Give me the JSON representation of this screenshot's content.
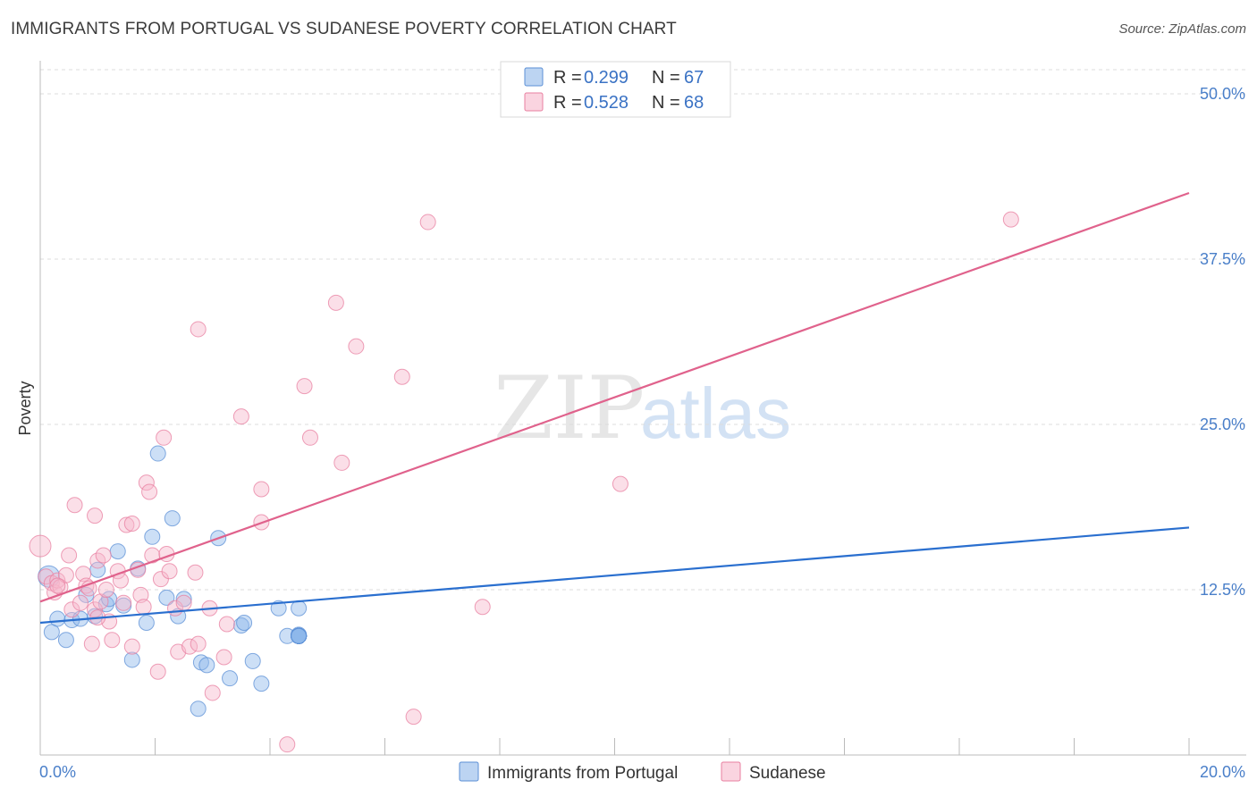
{
  "title": "IMMIGRANTS FROM PORTUGAL VS SUDANESE POVERTY CORRELATION CHART",
  "source": "Source: ZipAtlas.com",
  "chart_data": {
    "type": "scatter",
    "title": "IMMIGRANTS FROM PORTUGAL VS SUDANESE POVERTY CORRELATION CHART",
    "xlabel": "",
    "ylabel": "Poverty",
    "xlim": [
      0,
      20
    ],
    "ylim": [
      0,
      52.5
    ],
    "x_tick_labels": [
      "0.0%",
      "20.0%"
    ],
    "y_ticks": [
      12.5,
      25.0,
      37.5,
      50.0
    ],
    "y_tick_labels": [
      "12.5%",
      "25.0%",
      "37.5%",
      "50.0%"
    ],
    "grid": "horizontal dashed",
    "watermark": {
      "zip": "ZIP",
      "atlas": "atlas"
    },
    "legend": [
      {
        "r_label": "R =",
        "r_value": "0.299",
        "n_label": "N =",
        "n_value": "67"
      },
      {
        "r_label": "R =",
        "r_value": "0.528",
        "n_label": "N =",
        "n_value": "68"
      }
    ],
    "series": [
      {
        "name": "Immigrants from Portugal",
        "color": "#8fb8ea",
        "stroke": "#5b8fd6",
        "trend_color": "#2a6fcf",
        "trend": {
          "x": [
            0,
            20
          ],
          "y": [
            10.0,
            17.2
          ]
        },
        "points": [
          [
            0.15,
            13.5
          ],
          [
            0.2,
            9.3
          ],
          [
            0.3,
            10.3
          ],
          [
            0.45,
            8.7
          ],
          [
            0.55,
            10.2
          ],
          [
            0.7,
            10.3
          ],
          [
            0.8,
            12.1
          ],
          [
            0.95,
            10.5
          ],
          [
            1.0,
            14.0
          ],
          [
            1.15,
            11.4
          ],
          [
            1.2,
            11.8
          ],
          [
            1.35,
            15.4
          ],
          [
            1.45,
            11.3
          ],
          [
            1.6,
            7.2
          ],
          [
            1.7,
            14.1
          ],
          [
            1.85,
            10.0
          ],
          [
            1.95,
            16.5
          ],
          [
            2.05,
            22.8
          ],
          [
            2.2,
            11.9
          ],
          [
            2.3,
            17.9
          ],
          [
            2.4,
            10.5
          ],
          [
            2.5,
            11.8
          ],
          [
            2.75,
            3.5
          ],
          [
            2.8,
            7.0
          ],
          [
            2.9,
            6.8
          ],
          [
            3.1,
            16.4
          ],
          [
            3.3,
            5.8
          ],
          [
            3.5,
            9.8
          ],
          [
            3.55,
            10.0
          ],
          [
            3.7,
            7.1
          ],
          [
            3.85,
            5.4
          ],
          [
            4.15,
            11.1
          ],
          [
            4.3,
            9.0
          ],
          [
            4.5,
            9.1
          ],
          [
            4.5,
            11.1
          ],
          [
            4.5,
            9.0
          ],
          [
            4.5,
            9.0
          ],
          [
            4.5,
            9.0
          ],
          [
            4.5,
            9.0
          ],
          [
            4.5,
            9.0
          ],
          [
            4.5,
            9.0
          ],
          [
            4.5,
            9.0
          ],
          [
            4.5,
            9.0
          ],
          [
            4.5,
            9.0
          ],
          [
            4.5,
            9.0
          ],
          [
            4.5,
            9.0
          ],
          [
            4.5,
            9.0
          ],
          [
            4.5,
            9.0
          ],
          [
            4.5,
            9.0
          ],
          [
            4.5,
            9.0
          ],
          [
            4.5,
            9.0
          ],
          [
            4.5,
            9.0
          ],
          [
            4.5,
            9.0
          ],
          [
            4.5,
            9.0
          ],
          [
            4.5,
            9.0
          ],
          [
            4.5,
            9.0
          ],
          [
            4.5,
            9.0
          ],
          [
            4.5,
            9.0
          ],
          [
            4.5,
            9.0
          ],
          [
            4.5,
            9.0
          ],
          [
            4.5,
            9.0
          ],
          [
            4.5,
            9.0
          ],
          [
            4.5,
            9.0
          ],
          [
            4.5,
            9.0
          ],
          [
            4.5,
            9.0
          ],
          [
            4.5,
            9.0
          ],
          [
            4.5,
            9.0
          ]
        ]
      },
      {
        "name": "Sudanese",
        "color": "#f7b8cb",
        "stroke": "#e87fa0",
        "trend_color": "#e0628c",
        "trend": {
          "x": [
            0,
            20
          ],
          "y": [
            11.6,
            42.5
          ]
        },
        "points": [
          [
            0.0,
            15.8
          ],
          [
            0.1,
            13.5
          ],
          [
            0.2,
            13.0
          ],
          [
            0.25,
            12.3
          ],
          [
            0.3,
            13.2
          ],
          [
            0.35,
            12.7
          ],
          [
            0.45,
            13.6
          ],
          [
            0.5,
            15.1
          ],
          [
            0.55,
            11.0
          ],
          [
            0.6,
            18.9
          ],
          [
            0.7,
            11.5
          ],
          [
            0.75,
            13.7
          ],
          [
            0.8,
            12.8
          ],
          [
            0.85,
            12.6
          ],
          [
            0.9,
            8.4
          ],
          [
            0.95,
            11.0
          ],
          [
            0.95,
            18.1
          ],
          [
            1.0,
            14.7
          ],
          [
            1.05,
            11.6
          ],
          [
            1.1,
            15.1
          ],
          [
            1.15,
            12.5
          ],
          [
            1.2,
            10.1
          ],
          [
            1.25,
            8.7
          ],
          [
            1.35,
            13.9
          ],
          [
            1.4,
            13.2
          ],
          [
            1.45,
            11.5
          ],
          [
            1.5,
            17.4
          ],
          [
            1.6,
            17.5
          ],
          [
            1.6,
            8.2
          ],
          [
            1.7,
            14.0
          ],
          [
            1.75,
            12.1
          ],
          [
            1.8,
            11.2
          ],
          [
            1.85,
            20.6
          ],
          [
            1.9,
            19.9
          ],
          [
            1.95,
            15.1
          ],
          [
            2.05,
            6.3
          ],
          [
            2.1,
            13.3
          ],
          [
            2.15,
            24.0
          ],
          [
            2.2,
            15.2
          ],
          [
            2.25,
            13.9
          ],
          [
            2.35,
            11.1
          ],
          [
            2.4,
            7.8
          ],
          [
            2.5,
            11.5
          ],
          [
            2.6,
            8.2
          ],
          [
            2.7,
            13.8
          ],
          [
            2.75,
            8.4
          ],
          [
            2.75,
            32.2
          ],
          [
            2.95,
            11.1
          ],
          [
            3.0,
            4.7
          ],
          [
            3.2,
            7.4
          ],
          [
            3.25,
            9.9
          ],
          [
            3.5,
            25.6
          ],
          [
            3.85,
            17.6
          ],
          [
            3.85,
            20.1
          ],
          [
            4.3,
            0.8
          ],
          [
            4.6,
            27.9
          ],
          [
            4.7,
            24.0
          ],
          [
            5.15,
            34.2
          ],
          [
            5.25,
            22.1
          ],
          [
            5.5,
            30.9
          ],
          [
            6.3,
            28.6
          ],
          [
            6.5,
            2.9
          ],
          [
            6.75,
            40.3
          ],
          [
            7.7,
            11.2
          ],
          [
            10.1,
            20.5
          ],
          [
            16.9,
            40.5
          ],
          [
            0.3,
            12.8
          ],
          [
            1.0,
            10.4
          ]
        ]
      }
    ]
  }
}
